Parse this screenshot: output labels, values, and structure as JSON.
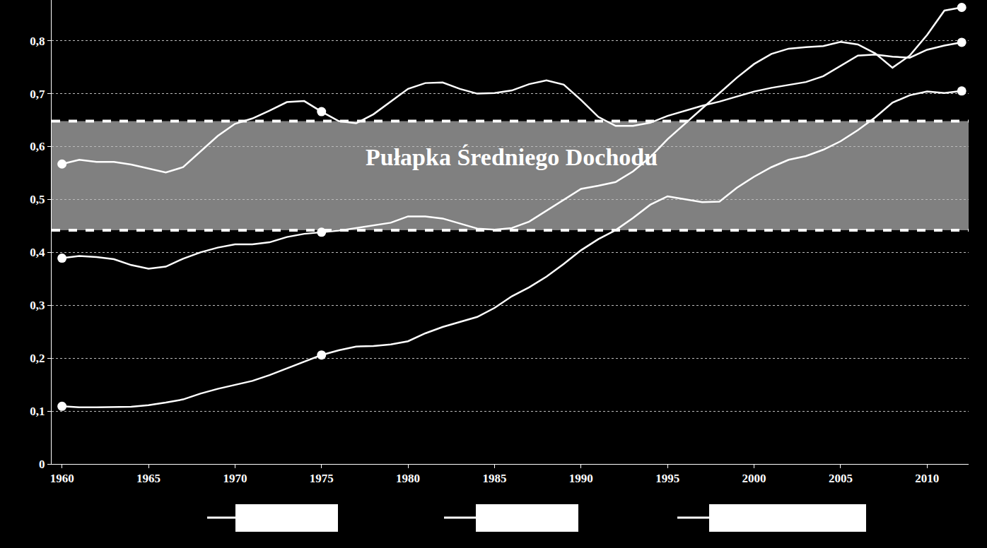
{
  "chart_data": {
    "type": "line",
    "x": [
      1960,
      1961,
      1962,
      1963,
      1964,
      1965,
      1966,
      1967,
      1968,
      1969,
      1970,
      1971,
      1972,
      1973,
      1974,
      1975,
      1976,
      1977,
      1978,
      1979,
      1980,
      1981,
      1982,
      1983,
      1984,
      1985,
      1986,
      1987,
      1988,
      1989,
      1990,
      1991,
      1992,
      1993,
      1994,
      1995,
      1996,
      1997,
      1998,
      1999,
      2000,
      2001,
      2002,
      2003,
      2004,
      2005,
      2006,
      2007,
      2008,
      2009,
      2010,
      2011,
      2012
    ],
    "series": [
      {
        "color": "#ffffff",
        "values": [
          0.567,
          0.575,
          0.571,
          0.571,
          0.566,
          0.559,
          0.551,
          0.561,
          0.59,
          0.62,
          0.643,
          0.653,
          0.668,
          0.684,
          0.686,
          0.666,
          0.648,
          0.644,
          0.661,
          0.685,
          0.709,
          0.72,
          0.721,
          0.709,
          0.7,
          0.701,
          0.706,
          0.718,
          0.725,
          0.717,
          0.688,
          0.656,
          0.639,
          0.639,
          0.645,
          0.658,
          0.668,
          0.677,
          0.685,
          0.694,
          0.704,
          0.711,
          0.717,
          0.722,
          0.733,
          0.752,
          0.772,
          0.774,
          0.77,
          0.768,
          0.783,
          0.791,
          0.797
        ]
      },
      {
        "color": "#ffffff",
        "values": [
          0.389,
          0.393,
          0.391,
          0.387,
          0.376,
          0.369,
          0.373,
          0.388,
          0.4,
          0.409,
          0.415,
          0.415,
          0.419,
          0.429,
          0.435,
          0.438,
          0.441,
          0.446,
          0.451,
          0.456,
          0.468,
          0.468,
          0.464,
          0.454,
          0.445,
          0.443,
          0.446,
          0.458,
          0.479,
          0.5,
          0.52,
          0.526,
          0.533,
          0.553,
          0.58,
          0.614,
          0.643,
          0.673,
          0.702,
          0.73,
          0.756,
          0.775,
          0.785,
          0.788,
          0.79,
          0.798,
          0.793,
          0.776,
          0.749,
          0.772,
          0.811,
          0.857,
          0.863
        ]
      },
      {
        "color": "#ffffff",
        "values": [
          0.109,
          0.107,
          0.107,
          0.108,
          0.108,
          0.111,
          0.116,
          0.122,
          0.133,
          0.142,
          0.149,
          0.157,
          0.168,
          0.181,
          0.194,
          0.206,
          0.215,
          0.222,
          0.223,
          0.226,
          0.232,
          0.247,
          0.259,
          0.268,
          0.278,
          0.295,
          0.317,
          0.334,
          0.354,
          0.378,
          0.404,
          0.425,
          0.442,
          0.465,
          0.49,
          0.506,
          0.5,
          0.495,
          0.496,
          0.522,
          0.543,
          0.561,
          0.575,
          0.582,
          0.594,
          0.61,
          0.631,
          0.655,
          0.683,
          0.697,
          0.704,
          0.701,
          0.705
        ]
      }
    ],
    "marker": "circle",
    "marked_x": [
      1960,
      1975,
      2012
    ],
    "annotations": [
      {
        "text": "Pułapka Średniego Dochodu",
        "x": 1986,
        "y": 0.58,
        "y0": 0.442,
        "y1": 0.648
      }
    ],
    "xlim": [
      1959.4,
      2012.4
    ],
    "xticks": [
      1960,
      1965,
      1970,
      1975,
      1980,
      1985,
      1990,
      1995,
      2000,
      2005,
      2010
    ],
    "ylim": [
      0,
      0.877
    ],
    "yticks": [
      0,
      {
        "value": 0.1,
        "label": "0,1"
      },
      {
        "value": 0.2,
        "label": "0,2"
      },
      {
        "value": 0.3,
        "label": "0,3"
      },
      {
        "value": 0.4,
        "label": "0,4"
      },
      {
        "value": 0.5,
        "label": "0,5"
      },
      {
        "value": 0.6,
        "label": "0,6"
      },
      {
        "value": 0.7,
        "label": "0,7"
      },
      {
        "value": 0.8,
        "label": "0,8"
      }
    ],
    "grid": true
  }
}
